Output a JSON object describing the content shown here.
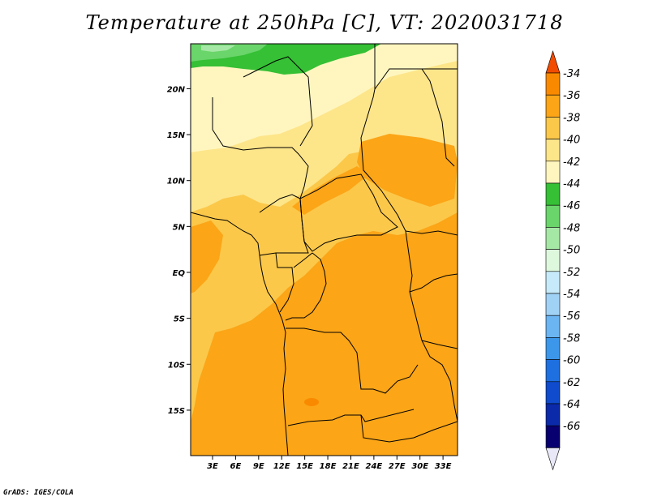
{
  "title": "Temperature at 250hPa [C], VT: 2020031718",
  "credit": "GrADS: IGES/COLA",
  "map": {
    "lat_labels": [
      "20N",
      "15N",
      "10N",
      "5N",
      "EQ",
      "5S",
      "10S",
      "15S"
    ],
    "lon_labels": [
      "3E",
      "6E",
      "9E",
      "12E",
      "15E",
      "18E",
      "21E",
      "24E",
      "27E",
      "30E",
      "33E"
    ],
    "lat_values": [
      20,
      15,
      10,
      5,
      0,
      -5,
      -10,
      -15
    ],
    "lon_values": [
      3,
      6,
      9,
      12,
      15,
      18,
      21,
      24,
      27,
      30,
      33
    ]
  },
  "colorbar": {
    "labels": [
      "-34",
      "-36",
      "-38",
      "-40",
      "-42",
      "-44",
      "-46",
      "-48",
      "-50",
      "-52",
      "-54",
      "-56",
      "-58",
      "-60",
      "-62",
      "-64",
      "-66"
    ],
    "colors": [
      "#f24c00",
      "#f98a00",
      "#fba517",
      "#fbc84a",
      "#fde58a",
      "#fff6bf",
      "#35c035",
      "#6ad56a",
      "#a5e8a5",
      "#def8de",
      "#c6eaf9",
      "#a0d2f6",
      "#6bb5f2",
      "#3c97ea",
      "#1e6fe0",
      "#0f4bcc",
      "#0a2aaa",
      "#080070",
      "#e8e8f8"
    ]
  }
}
